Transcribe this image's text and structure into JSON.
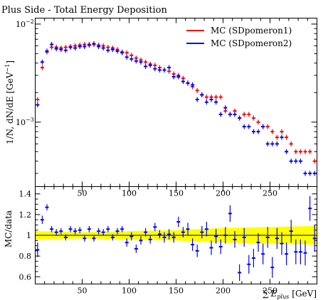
{
  "chart_data": [
    {
      "type": "scatter",
      "title": "Plus Side - Total Energy Deposition",
      "ylabel": "1/N, dN/dE [GeV^-1]",
      "ylabel_main": "1/N, dN/dE [GeV",
      "ylabel_exp": "−1",
      "ylabel_close": "]",
      "yscale": "log",
      "xlim": [
        0,
        300
      ],
      "ylim": [
        0.00022,
        0.0115
      ],
      "xticks": [
        50,
        100,
        150,
        200,
        250
      ],
      "xtick_labels": [
        "50",
        "100",
        "150",
        "200",
        "250"
      ],
      "yticks": [
        0.001,
        0.01
      ],
      "ytick_labels_main": [
        "10",
        "10"
      ],
      "ytick_labels_exp": [
        "−3",
        "−2"
      ],
      "legend_position": "top-right",
      "colors": {
        "red": "#ff0000",
        "blue": "#0000ff"
      },
      "series": [
        {
          "name": "MC (SDpomeron1)",
          "color": "#ff0000",
          "x": [
            2.5,
            7.5,
            12.5,
            17.5,
            22.5,
            27.5,
            32.5,
            37.5,
            42.5,
            47.5,
            52.5,
            57.5,
            62.5,
            67.5,
            72.5,
            77.5,
            82.5,
            87.5,
            92.5,
            97.5,
            102.5,
            107.5,
            112.5,
            117.5,
            122.5,
            127.5,
            132.5,
            137.5,
            142.5,
            147.5,
            152.5,
            157.5,
            162.5,
            167.5,
            172.5,
            177.5,
            182.5,
            187.5,
            192.5,
            197.5,
            202.5,
            207.5,
            212.5,
            217.5,
            222.5,
            227.5,
            232.5,
            237.5,
            242.5,
            247.5,
            252.5,
            257.5,
            262.5,
            267.5,
            272.5,
            277.5,
            282.5,
            287.5,
            292.5,
            297.5
          ],
          "y": [
            0.0017,
            0.0036,
            0.0052,
            0.0058,
            0.0058,
            0.0057,
            0.0058,
            0.0059,
            0.006,
            0.0061,
            0.0062,
            0.0062,
            0.0062,
            0.0061,
            0.006,
            0.0058,
            0.0057,
            0.0055,
            0.0052,
            0.0051,
            0.0048,
            0.0045,
            0.0043,
            0.0041,
            0.0039,
            0.0038,
            0.0036,
            0.0034,
            0.0033,
            0.0031,
            0.003,
            0.0028,
            0.0025,
            0.0023,
            0.0021,
            0.0019,
            0.0018,
            0.0018,
            0.0018,
            0.0018,
            0.0013,
            0.0012,
            0.0013,
            0.0011,
            0.0012,
            0.0012,
            0.0011,
            0.001,
            0.0009,
            0.0009,
            0.0008,
            0.0007,
            0.0008,
            0.0007,
            0.0006,
            0.0005,
            0.0005,
            0.0005,
            0.0005,
            0.0004
          ]
        },
        {
          "name": "MC (SDpomeron2)",
          "color": "#0000ff",
          "x": [
            2.5,
            7.5,
            12.5,
            17.5,
            22.5,
            27.5,
            32.5,
            37.5,
            42.5,
            47.5,
            52.5,
            57.5,
            62.5,
            67.5,
            72.5,
            77.5,
            82.5,
            87.5,
            92.5,
            97.5,
            102.5,
            107.5,
            112.5,
            117.5,
            122.5,
            127.5,
            132.5,
            137.5,
            142.5,
            147.5,
            152.5,
            157.5,
            162.5,
            167.5,
            172.5,
            177.5,
            182.5,
            187.5,
            192.5,
            197.5,
            202.5,
            207.5,
            212.5,
            217.5,
            222.5,
            227.5,
            232.5,
            237.5,
            242.5,
            247.5,
            252.5,
            257.5,
            262.5,
            267.5,
            272.5,
            277.5,
            282.5,
            287.5,
            292.5,
            297.5
          ],
          "y": [
            0.0015,
            0.0041,
            0.0053,
            0.0062,
            0.0056,
            0.0055,
            0.0054,
            0.0058,
            0.0057,
            0.0059,
            0.0059,
            0.0061,
            0.0063,
            0.0059,
            0.0057,
            0.0054,
            0.0055,
            0.0053,
            0.0051,
            0.0046,
            0.0044,
            0.0042,
            0.0041,
            0.0037,
            0.0038,
            0.0035,
            0.0034,
            0.0034,
            0.0036,
            0.0029,
            0.0029,
            0.0026,
            0.0025,
            0.0024,
            0.0017,
            0.0019,
            0.0016,
            0.0017,
            0.0016,
            0.0012,
            0.0014,
            0.0012,
            0.0012,
            0.0011,
            0.0009,
            0.0009,
            0.0008,
            0.0008,
            0.0009,
            0.0006,
            0.0006,
            0.0006,
            0.0007,
            0.0005,
            0.0004,
            0.0004,
            0.0004,
            0.0003,
            0.0003,
            0.0003
          ]
        }
      ]
    },
    {
      "type": "scatter",
      "xlabel": "∑ E_plus [GeV]",
      "xlabel_sum": "∑",
      "xlabel_var": "E",
      "xlabel_sub": "plus",
      "xlabel_unit": "[GeV]",
      "ylabel": "MC/data",
      "xlim": [
        0,
        300
      ],
      "ylim": [
        0.53,
        1.47
      ],
      "xticks": [
        50,
        100,
        150,
        200,
        250
      ],
      "xtick_labels": [
        "50",
        "100",
        "150",
        "200",
        "250"
      ],
      "yticks": [
        0.6,
        0.8,
        1.0,
        1.2,
        1.4
      ],
      "ytick_labels": [
        "0.6",
        "0.8",
        "1",
        "1.2",
        "1.4"
      ],
      "reference_line": 1.0,
      "band": {
        "color": "#ffff00",
        "x": [
          0,
          50,
          100,
          150,
          200,
          250,
          300
        ],
        "half_width": [
          0.04,
          0.03,
          0.04,
          0.05,
          0.07,
          0.08,
          0.09
        ]
      },
      "series": [
        {
          "color": "#0000ff",
          "x": [
            2.5,
            7.5,
            12.5,
            17.5,
            22.5,
            27.5,
            32.5,
            37.5,
            42.5,
            47.5,
            52.5,
            57.5,
            62.5,
            67.5,
            72.5,
            77.5,
            82.5,
            87.5,
            92.5,
            97.5,
            102.5,
            107.5,
            112.5,
            117.5,
            122.5,
            127.5,
            132.5,
            137.5,
            142.5,
            147.5,
            152.5,
            157.5,
            162.5,
            167.5,
            172.5,
            177.5,
            182.5,
            187.5,
            192.5,
            197.5,
            202.5,
            207.5,
            212.5,
            217.5,
            222.5,
            227.5,
            232.5,
            237.5,
            242.5,
            247.5,
            252.5,
            257.5,
            262.5,
            267.5,
            272.5,
            277.5,
            282.5,
            287.5,
            292.5,
            297.5
          ],
          "y": [
            0.86,
            1.15,
            1.27,
            1.06,
            1.03,
            1.04,
            0.98,
            1.06,
            1.04,
            1.05,
            0.97,
            1.06,
            0.97,
            1.04,
            1.03,
            1.06,
            0.98,
            1.04,
            1.06,
            0.93,
            0.99,
            0.87,
            0.95,
            1.03,
            0.96,
            1.08,
            1.01,
            0.98,
            1.01,
            0.98,
            1.13,
            1.03,
            1.06,
            0.91,
            0.85,
            1.03,
            1.06,
            0.88,
            0.99,
            0.89,
            1.0,
            1.21,
            0.96,
            0.64,
            0.98,
            0.72,
            0.78,
            0.93,
            0.82,
            0.98,
            0.69,
            0.97,
            0.92,
            0.82,
            1.04,
            0.84,
            0.84,
            0.83,
            1.26,
            0.97
          ],
          "yerr": [
            0.07,
            0.04,
            0.03,
            0.03,
            0.03,
            0.03,
            0.03,
            0.03,
            0.03,
            0.03,
            0.03,
            0.03,
            0.03,
            0.03,
            0.03,
            0.03,
            0.03,
            0.03,
            0.03,
            0.04,
            0.04,
            0.04,
            0.04,
            0.04,
            0.04,
            0.04,
            0.04,
            0.05,
            0.05,
            0.05,
            0.05,
            0.05,
            0.06,
            0.06,
            0.06,
            0.06,
            0.07,
            0.07,
            0.07,
            0.07,
            0.08,
            0.08,
            0.08,
            0.08,
            0.09,
            0.09,
            0.09,
            0.09,
            0.1,
            0.1,
            0.1,
            0.1,
            0.11,
            0.11,
            0.11,
            0.12,
            0.12,
            0.12,
            0.12,
            0.13
          ]
        }
      ]
    }
  ]
}
